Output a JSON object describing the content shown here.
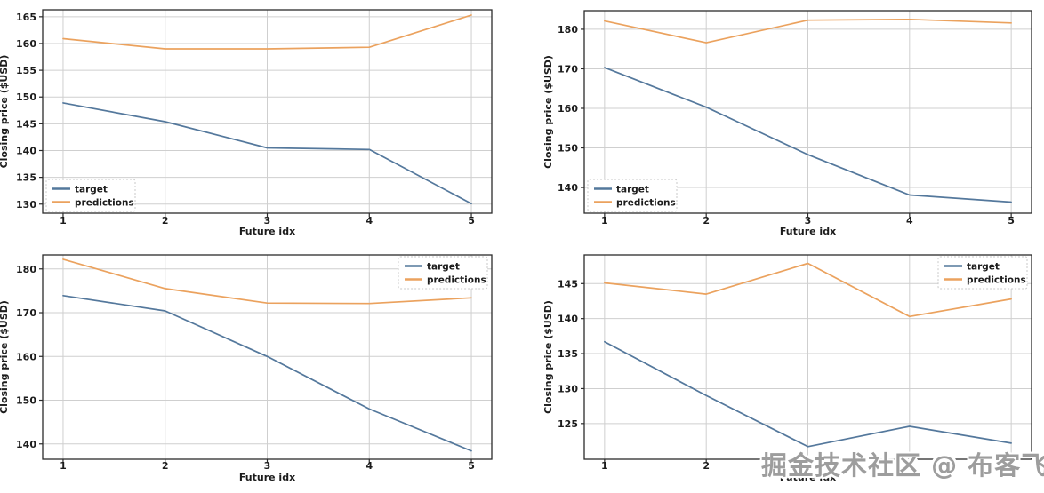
{
  "watermark": "掘金技术社区 @ 布客飞龙",
  "colors": {
    "target": "#54789c",
    "predictions": "#eba25e",
    "grid": "#cfcfcf",
    "spine": "#2b2b2b",
    "text": "#1c1c1c",
    "legend_border": "#c9c9c9",
    "background": "#ffffff",
    "watermark": "#9d9d9d"
  },
  "legend": {
    "target_label": "target",
    "predictions_label": "predictions"
  },
  "chart_data": [
    {
      "type": "line",
      "position": "top-left",
      "title": "",
      "xlabel": "Future idx",
      "ylabel": "Closing price ($USD)",
      "x": [
        1,
        2,
        3,
        4,
        5
      ],
      "xticks": [
        1,
        2,
        3,
        4,
        5
      ],
      "yticks": [
        130,
        135,
        140,
        145,
        150,
        155,
        160,
        165
      ],
      "xlim": [
        0.8,
        5.2
      ],
      "ylim": [
        128.3,
        166.3
      ],
      "grid": true,
      "legend_position": "lower left",
      "series": [
        {
          "name": "target",
          "values": [
            148.9,
            145.4,
            140.5,
            140.2,
            130.1
          ]
        },
        {
          "name": "predictions",
          "values": [
            160.9,
            159.0,
            159.0,
            159.3,
            165.3
          ]
        }
      ]
    },
    {
      "type": "line",
      "position": "top-right",
      "title": "",
      "xlabel": "Future idx",
      "ylabel": "Closing price ($USD)",
      "x": [
        1,
        2,
        3,
        4,
        5
      ],
      "xticks": [
        1,
        2,
        3,
        4,
        5
      ],
      "yticks": [
        140,
        150,
        160,
        170,
        180
      ],
      "xlim": [
        0.8,
        5.2
      ],
      "ylim": [
        133.5,
        184.7
      ],
      "grid": true,
      "legend_position": "lower left",
      "series": [
        {
          "name": "target",
          "values": [
            170.3,
            160.3,
            148.3,
            138.1,
            136.3
          ]
        },
        {
          "name": "predictions",
          "values": [
            182.1,
            176.6,
            182.3,
            182.5,
            181.6
          ]
        }
      ]
    },
    {
      "type": "line",
      "position": "bottom-left",
      "title": "",
      "xlabel": "Future idx",
      "ylabel": "Closing price ($USD)",
      "x": [
        1,
        2,
        3,
        4,
        5
      ],
      "xticks": [
        1,
        2,
        3,
        4,
        5
      ],
      "yticks": [
        140,
        150,
        160,
        170,
        180
      ],
      "xlim": [
        0.8,
        5.2
      ],
      "ylim": [
        136.5,
        183.2
      ],
      "grid": true,
      "legend_position": "upper right",
      "series": [
        {
          "name": "target",
          "values": [
            173.9,
            170.4,
            160.0,
            148.0,
            138.4
          ]
        },
        {
          "name": "predictions",
          "values": [
            182.2,
            175.5,
            172.2,
            172.1,
            173.4
          ]
        }
      ]
    },
    {
      "type": "line",
      "position": "bottom-right",
      "title": "",
      "xlabel": "Future idx",
      "ylabel": "Closing price ($USD)",
      "x": [
        1,
        2,
        3,
        4,
        5
      ],
      "xticks": [
        1,
        2,
        3,
        4,
        5
      ],
      "yticks": [
        125,
        130,
        135,
        140,
        145
      ],
      "xlim": [
        0.8,
        5.2
      ],
      "ylim": [
        119.9,
        149.1
      ],
      "grid": true,
      "legend_position": "upper right",
      "series": [
        {
          "name": "target",
          "values": [
            136.7,
            129.0,
            121.7,
            124.6,
            122.2
          ]
        },
        {
          "name": "predictions",
          "values": [
            145.1,
            143.5,
            147.9,
            140.3,
            142.8
          ]
        }
      ]
    }
  ]
}
